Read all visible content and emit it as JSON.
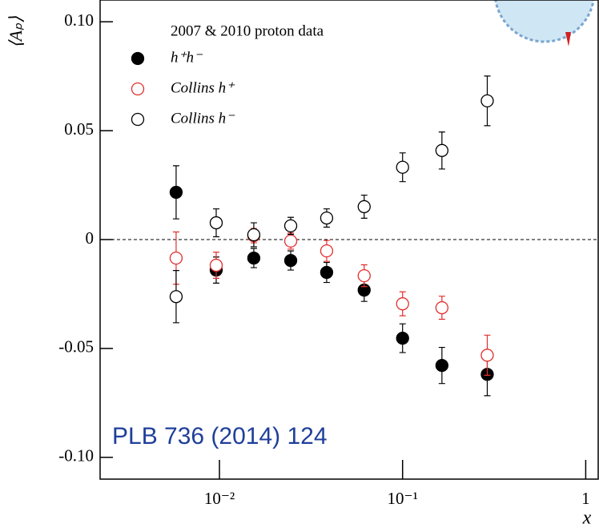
{
  "chart_data": {
    "type": "scatter",
    "y_label": "⟨Aₚ⟩",
    "x_label": "x",
    "legend_title": "2007 & 2010 proton data",
    "annotation": "PLB 736 (2014) 124",
    "log_x": true,
    "zero_line": true,
    "x": [
      0.0058,
      0.0096,
      0.0154,
      0.0245,
      0.0385,
      0.0617,
      0.1,
      0.164,
      0.29
    ],
    "series": [
      {
        "name": "h⁺h⁻",
        "color": "#000000",
        "marker": "filled",
        "values": [
          0.0217,
          -0.014,
          -0.0085,
          -0.0096,
          -0.0151,
          -0.0232,
          -0.0453,
          -0.0578,
          -0.0619
        ],
        "errors": [
          0.0122,
          0.006,
          0.0044,
          0.0044,
          0.0046,
          0.0052,
          0.0066,
          0.0083,
          0.0098
        ]
      },
      {
        "name": "Collins h⁺",
        "color": "#e0302e",
        "marker": "open",
        "values": [
          -0.0085,
          -0.0118,
          0.0018,
          -0.0007,
          -0.0052,
          -0.0166,
          -0.0295,
          -0.0313,
          -0.0531
        ],
        "errors": [
          0.012,
          0.006,
          0.0033,
          0.0037,
          0.0048,
          0.005,
          0.0055,
          0.0053,
          0.0092
        ]
      },
      {
        "name": "Collins h⁻",
        "color": "#000000",
        "marker": "open",
        "values": [
          -0.0262,
          0.0077,
          0.0022,
          0.0063,
          0.0099,
          0.0151,
          0.0332,
          0.0409,
          0.0637
        ],
        "errors": [
          0.012,
          0.0064,
          0.0055,
          0.0039,
          0.0042,
          0.0053,
          0.0066,
          0.0085,
          0.0114
        ]
      }
    ],
    "xlim": [
      0.00223,
      1.17
    ],
    "xticks": [
      {
        "value": 0.01,
        "label": "10⁻²"
      },
      {
        "value": 0.1,
        "label": "10⁻¹"
      },
      1
    ],
    "ylim": [
      -0.11,
      0.11
    ],
    "yticks": [
      {
        "value": -0.1,
        "label": "-0.10"
      },
      {
        "value": -0.05,
        "label": "-0.05"
      },
      0,
      {
        "value": 0.05,
        "label": "0.05"
      },
      {
        "value": 0.1,
        "label": "0.10"
      }
    ]
  }
}
